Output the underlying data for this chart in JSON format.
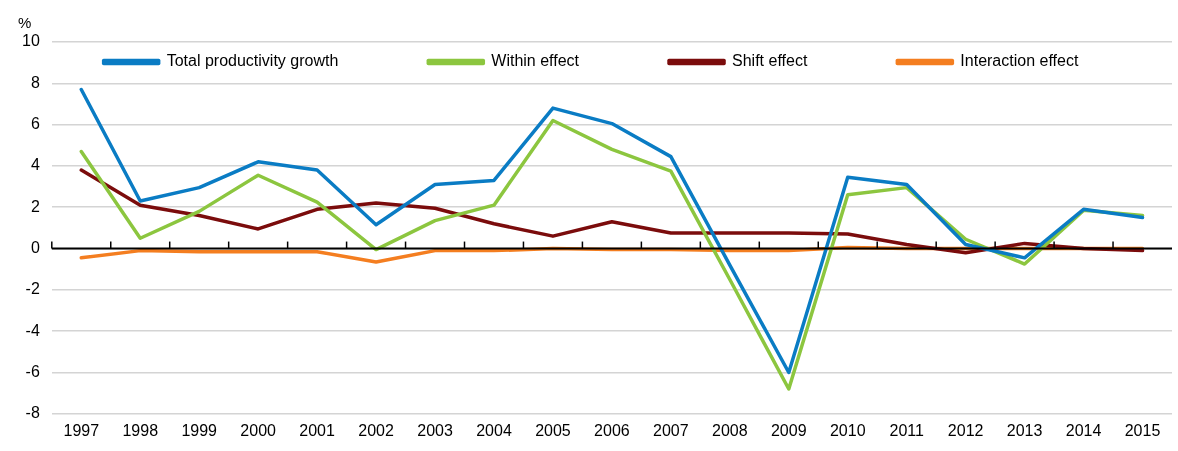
{
  "chart_data": {
    "type": "line",
    "ylabel": "%",
    "categories": [
      "1997",
      "1998",
      "1999",
      "2000",
      "2001",
      "2002",
      "2003",
      "2004",
      "2005",
      "2006",
      "2007",
      "2008",
      "2009",
      "2010",
      "2011",
      "2012",
      "2013",
      "2014",
      "2015"
    ],
    "series": [
      {
        "name": "Total productivity growth",
        "color": "#0a7cc4",
        "values": [
          7.7,
          2.3,
          2.95,
          4.2,
          3.8,
          1.15,
          3.1,
          3.3,
          6.8,
          6.05,
          4.45,
          -0.8,
          -6.0,
          3.45,
          3.1,
          0.2,
          -0.45,
          1.9,
          1.5
        ]
      },
      {
        "name": "Within effect",
        "color": "#8cc63f",
        "values": [
          4.7,
          0.5,
          1.8,
          3.55,
          2.25,
          -0.05,
          1.35,
          2.1,
          6.2,
          4.8,
          3.75,
          -1.5,
          -6.8,
          2.6,
          2.95,
          0.45,
          -0.75,
          1.85,
          1.6
        ]
      },
      {
        "name": "Shift effect",
        "color": "#7b0c0c",
        "values": [
          3.8,
          2.1,
          1.6,
          0.95,
          1.9,
          2.2,
          1.95,
          1.2,
          0.6,
          1.3,
          0.75,
          0.75,
          0.75,
          0.7,
          0.2,
          -0.2,
          0.25,
          0.0,
          -0.1
        ]
      },
      {
        "name": "Interaction effect",
        "color": "#f47e20",
        "values": [
          -0.45,
          -0.1,
          -0.15,
          -0.15,
          -0.15,
          -0.65,
          -0.1,
          -0.1,
          0.0,
          -0.05,
          -0.05,
          -0.1,
          -0.1,
          0.05,
          0.0,
          0.0,
          0.0,
          0.0,
          0.0
        ]
      }
    ],
    "ylim": [
      -8,
      10
    ],
    "yticks": [
      -8,
      -6,
      -4,
      -2,
      0,
      2,
      4,
      6,
      8,
      10
    ],
    "grid": "y",
    "legend": "top",
    "marker": "none",
    "line_style": "solid"
  }
}
